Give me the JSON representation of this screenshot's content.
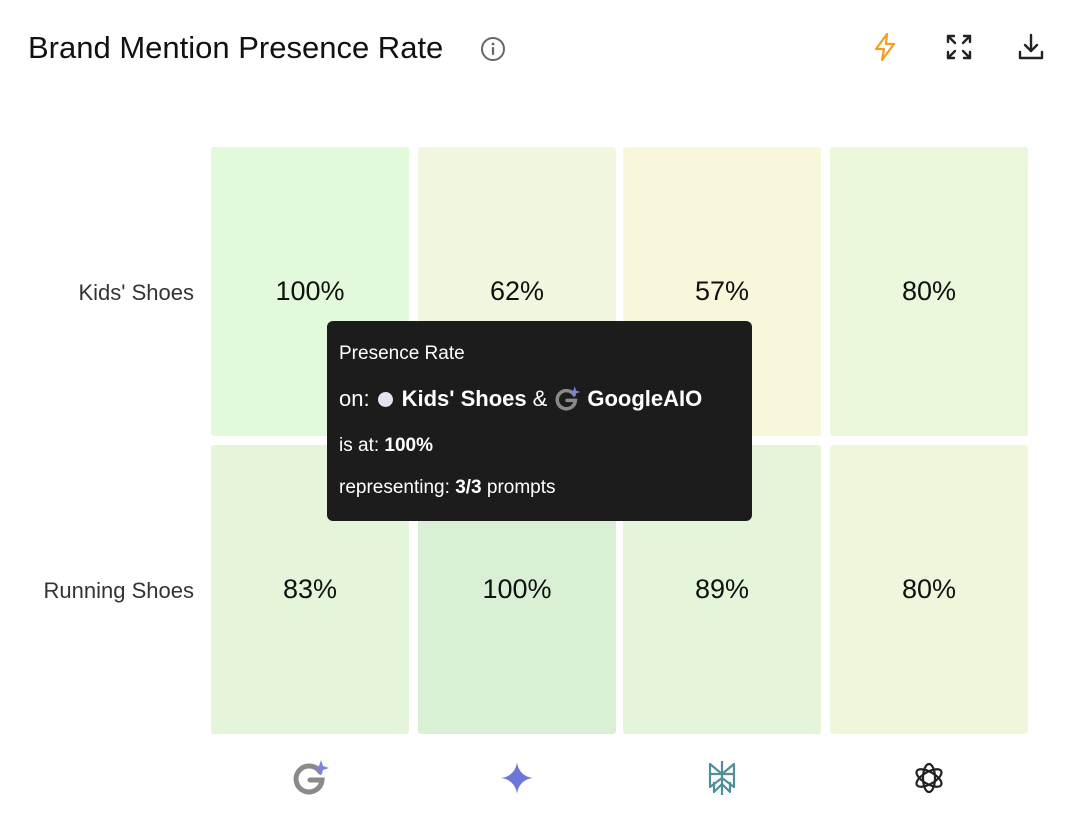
{
  "header": {
    "title": "Brand Mention Presence Rate",
    "info_icon": "info-icon",
    "actions": [
      {
        "name": "lightning-icon",
        "color": "#f0a020"
      },
      {
        "name": "expand-icon",
        "color": "#222222"
      },
      {
        "name": "download-icon",
        "color": "#222222"
      }
    ]
  },
  "chart_data": {
    "type": "heatmap",
    "title": "Brand Mention Presence Rate",
    "rows": [
      "Kids' Shoes",
      "Running Shoes"
    ],
    "columns": [
      "GoogleAIO",
      "gemini",
      "perplexity",
      "chatgpt"
    ],
    "column_icons": [
      "google-aio-icon",
      "gemini-sparkle-icon",
      "perplexity-icon",
      "openai-icon"
    ],
    "values": [
      [
        100,
        62,
        57,
        80
      ],
      [
        83,
        100,
        89,
        80
      ]
    ],
    "labels": [
      [
        "100%",
        "62%",
        "57%",
        "80%"
      ],
      [
        "83%",
        "100%",
        "89%",
        "80%"
      ]
    ],
    "cell_colors": [
      [
        "#e2fadb",
        "#f1f7de",
        "#f8f7dc",
        "#eaf7db"
      ],
      [
        "#e4f5d9",
        "#d9f0d5",
        "#e4f5d9",
        "#eef7dc"
      ]
    ]
  },
  "tooltip": {
    "title": "Presence Rate",
    "on_prefix": "on:",
    "row": "Kids' Shoes",
    "joiner": "&",
    "column": "GoogleAIO",
    "at_prefix": "is at:",
    "at_value": "100%",
    "rep_prefix": "representing:",
    "rep_value": "3/3",
    "rep_suffix": "prompts"
  }
}
